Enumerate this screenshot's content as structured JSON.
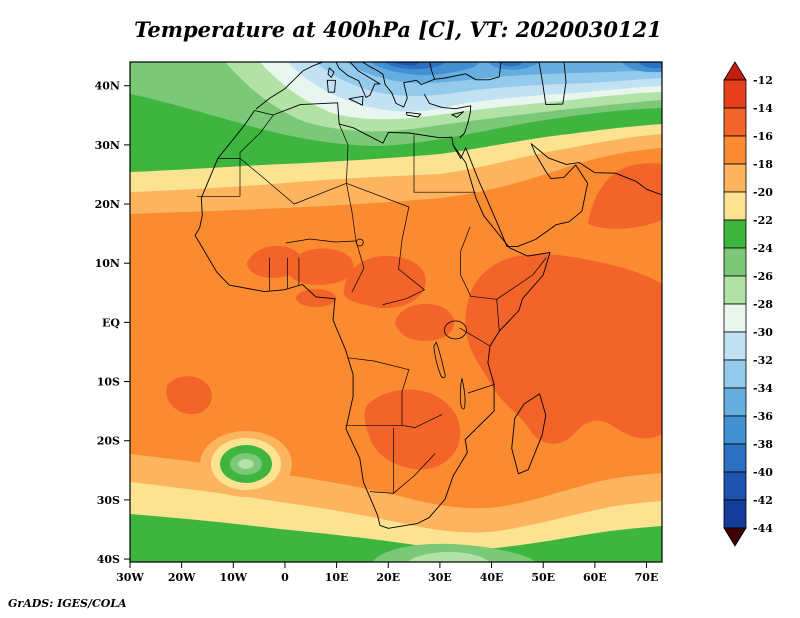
{
  "title": "Temperature at 400hPa [C], VT: 2020030121",
  "credit": "GrADS: IGES/COLA",
  "chart_data": {
    "type": "heatmap",
    "title": "Temperature at 400hPa [C], VT: 2020030121",
    "variable": "Temperature",
    "pressure_level": "400hPa",
    "units": "C",
    "valid_time": "2020030121",
    "x_ticks": [
      "30W",
      "20W",
      "10W",
      "0",
      "10E",
      "20E",
      "30E",
      "40E",
      "50E",
      "60E",
      "70E"
    ],
    "y_ticks": [
      "40N",
      "30N",
      "20N",
      "10N",
      "EQ",
      "10S",
      "20S",
      "30S",
      "40S"
    ],
    "xlim_deg_lon": [
      -30,
      73
    ],
    "ylim_deg_lat": [
      -40.5,
      44
    ],
    "grid": true,
    "legend_position": "right",
    "colorbar": {
      "labels": [
        "-12",
        "-14",
        "-16",
        "-18",
        "-20",
        "-22",
        "-24",
        "-26",
        "-28",
        "-30",
        "-32",
        "-34",
        "-36",
        "-38",
        "-40",
        "-42",
        "-44"
      ],
      "colors": [
        "#c21f0e",
        "#e8401c",
        "#f2642a",
        "#fa8b31",
        "#fdb45f",
        "#fbe391",
        "#3eb53e",
        "#7ac878",
        "#b2e2a6",
        "#e9f6ef",
        "#c2e2f4",
        "#94caec",
        "#67aee0",
        "#4190d2",
        "#2b70c2",
        "#1e53b0",
        "#153c98",
        "#400000"
      ]
    },
    "grid_estimate_degC": {
      "lons": [
        -30,
        -20,
        -10,
        0,
        10,
        20,
        30,
        40,
        50,
        60,
        70
      ],
      "lats": [
        40,
        30,
        20,
        10,
        0,
        -10,
        -20,
        -30,
        -40
      ],
      "values": [
        [
          -24,
          -25,
          -27,
          -30,
          -34,
          -36,
          -34,
          -33,
          -31,
          -32,
          -34
        ],
        [
          -23,
          -23,
          -24,
          -26,
          -27,
          -27,
          -27,
          -26,
          -25,
          -26,
          -28
        ],
        [
          -21,
          -20,
          -20,
          -19,
          -19,
          -19,
          -18,
          -18,
          -17,
          -15,
          -14
        ],
        [
          -17,
          -17,
          -16,
          -16,
          -15,
          -15,
          -16,
          -15,
          -14,
          -14,
          -15
        ],
        [
          -17,
          -17,
          -17,
          -16,
          -16,
          -16,
          -16,
          -15,
          -14,
          -14,
          -15
        ],
        [
          -17,
          -16,
          -17,
          -17,
          -16,
          -16,
          -16,
          -15,
          -14,
          -15,
          -14
        ],
        [
          -17,
          -17,
          -21,
          -18,
          -17,
          -15,
          -15,
          -16,
          -15,
          -15,
          -16
        ],
        [
          -19,
          -19,
          -19,
          -18,
          -18,
          -17,
          -17,
          -18,
          -18,
          -17,
          -17
        ],
        [
          -22,
          -23,
          -22,
          -22,
          -23,
          -24,
          -25,
          -24,
          -23,
          -23,
          -23
        ]
      ]
    }
  }
}
